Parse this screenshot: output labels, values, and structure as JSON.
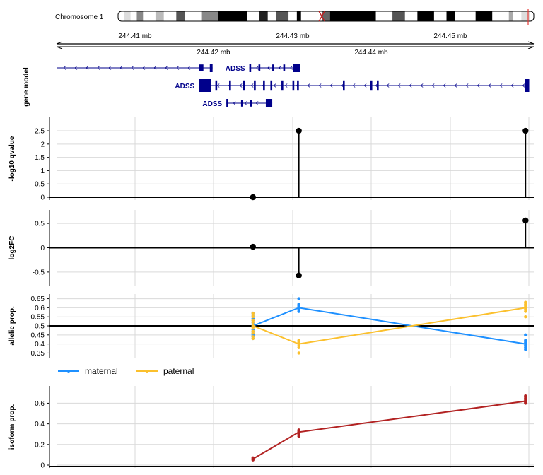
{
  "chromosome": {
    "label": "Chromosome 1"
  },
  "genome_axis": {
    "unit": "mb",
    "ticks_top": [
      "244.41 mb",
      "244.43 mb",
      "244.45 mb"
    ],
    "ticks_bottom": [
      "244.42 mb",
      "244.44 mb"
    ],
    "range": [
      244.4005,
      244.4525
    ]
  },
  "gene_track": {
    "label": "gene model",
    "color": "#00008B",
    "transcripts": [
      {
        "name": "",
        "start": 244.4005,
        "end": 244.4175,
        "exons": [
          [
            244.416,
            244.4165
          ],
          [
            244.4172,
            244.4175
          ]
        ]
      },
      {
        "name": "ADSS",
        "start": 244.4215,
        "end": 244.427,
        "exons": [
          [
            244.4215,
            244.4217
          ],
          [
            244.4225,
            244.4227
          ],
          [
            244.424,
            244.4242
          ],
          [
            244.4252,
            244.4254
          ],
          [
            244.4263,
            244.427
          ]
        ]
      },
      {
        "name": "ADSS",
        "start": 244.416,
        "end": 244.452,
        "exons": [
          [
            244.416,
            244.4173
          ],
          [
            244.4178,
            244.418
          ],
          [
            244.4193,
            244.4195
          ],
          [
            244.4208,
            244.421
          ],
          [
            244.422,
            244.4222
          ],
          [
            244.423,
            244.4232
          ],
          [
            244.4238,
            244.424
          ],
          [
            244.425,
            244.4252
          ],
          [
            244.4262,
            244.4264
          ],
          [
            244.4267,
            244.4269
          ],
          [
            244.4317,
            244.4319
          ],
          [
            244.4347,
            244.4349
          ],
          [
            244.4354,
            244.4356
          ],
          [
            244.4515,
            244.452
          ]
        ]
      },
      {
        "name": "ADSS",
        "start": 244.419,
        "end": 244.424,
        "exons": [
          [
            244.419,
            244.4192
          ],
          [
            244.4206,
            244.4208
          ],
          [
            244.4216,
            244.4218
          ],
          [
            244.4233,
            244.424
          ]
        ]
      }
    ]
  },
  "colors": {
    "maternal": "#1E90FF",
    "paternal": "#FBC02D",
    "isoform": "#B22222",
    "lollipop": "#000000",
    "grid": "#D9D9D9",
    "chrom_highlight": "#E53935"
  },
  "chart_data": [
    {
      "type": "scatter",
      "name": "qvalue",
      "ylabel": "-log10 qvalue",
      "ylim": [
        0,
        2.9
      ],
      "yticks": [
        "0",
        "0.5",
        "1",
        "1.5",
        "2",
        "2.5"
      ],
      "x": [
        244.4219,
        244.4269,
        244.4516
      ],
      "values": [
        0.0,
        2.5,
        2.5
      ]
    },
    {
      "type": "scatter",
      "name": "log2FC",
      "ylabel": "log2FC",
      "ylim": [
        -0.72,
        0.72
      ],
      "yticks": [
        "-0.5",
        "0",
        "0.5"
      ],
      "x": [
        244.4219,
        244.4269,
        244.4516
      ],
      "values": [
        0.02,
        -0.57,
        0.56
      ]
    },
    {
      "type": "line",
      "name": "allelic",
      "ylabel": "allelic prop.",
      "ylim": [
        0.34,
        0.66
      ],
      "yticks": [
        "0.35",
        "0.4",
        "0.45",
        "0.5",
        "0.55",
        "0.6",
        "0.65"
      ],
      "x": [
        244.4219,
        244.4269,
        244.4516
      ],
      "series": [
        {
          "name": "maternal",
          "values": [
            0.5,
            0.6,
            0.4
          ],
          "points": [
            [
              0.43,
              0.44,
              0.45,
              0.46,
              0.47,
              0.48,
              0.5,
              0.51,
              0.52,
              0.53,
              0.54,
              0.55,
              0.56,
              0.57
            ],
            [
              0.58,
              0.58,
              0.59,
              0.6,
              0.6,
              0.61,
              0.61,
              0.62,
              0.65
            ],
            [
              0.37,
              0.38,
              0.39,
              0.39,
              0.4,
              0.41,
              0.42,
              0.45
            ]
          ]
        },
        {
          "name": "paternal",
          "values": [
            0.5,
            0.4,
            0.6
          ],
          "points": [
            [
              0.43,
              0.44,
              0.46,
              0.47,
              0.49,
              0.5,
              0.52,
              0.53,
              0.55,
              0.56,
              0.57
            ],
            [
              0.35,
              0.38,
              0.39,
              0.4,
              0.41,
              0.42
            ],
            [
              0.55,
              0.58,
              0.59,
              0.6,
              0.61,
              0.62,
              0.63
            ]
          ]
        }
      ]
    },
    {
      "type": "line",
      "name": "isoform",
      "ylabel": "isoform prop.",
      "ylim": [
        0,
        0.74
      ],
      "yticks": [
        "0",
        "0.2",
        "0.4",
        "0.6"
      ],
      "x": [
        244.4219,
        244.4269,
        244.4516
      ],
      "series": [
        {
          "name": "isoform",
          "values": [
            0.06,
            0.32,
            0.62
          ],
          "points": [
            [
              0.05,
              0.06,
              0.07
            ],
            [
              0.28,
              0.3,
              0.32,
              0.33,
              0.34
            ],
            [
              0.6,
              0.61,
              0.63,
              0.65,
              0.67
            ]
          ]
        }
      ]
    }
  ],
  "legend": {
    "items": [
      "maternal",
      "paternal"
    ]
  }
}
